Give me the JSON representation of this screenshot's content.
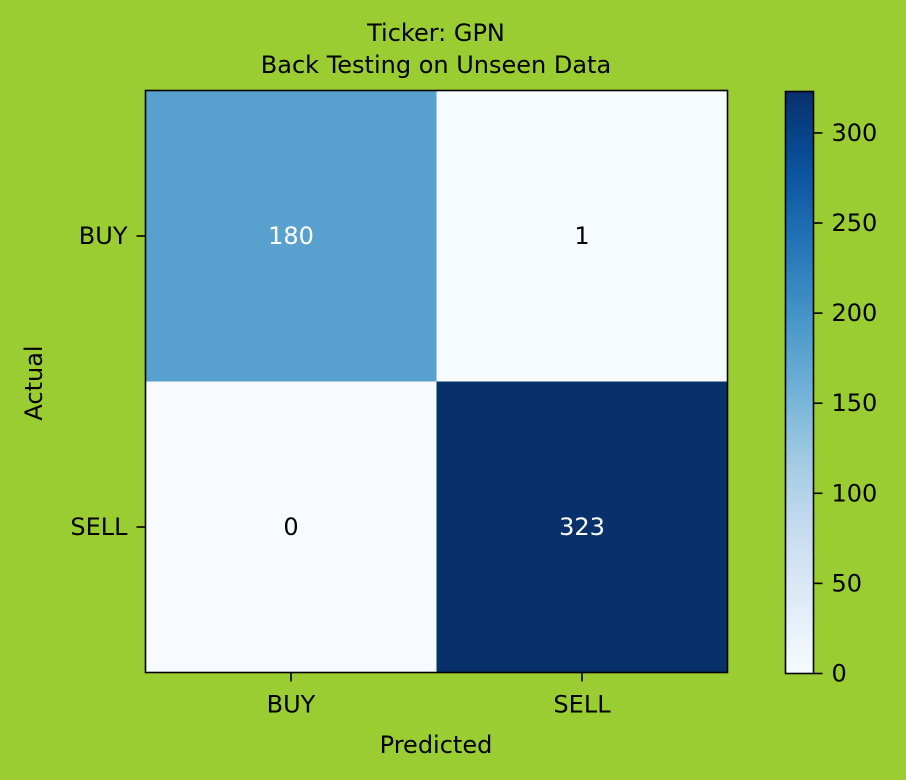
{
  "background_color": "#9acd32",
  "chart_data": {
    "type": "heatmap",
    "title": "Ticker: GPN",
    "subtitle": "Back Testing on Unseen Data",
    "xlabel": "Predicted",
    "ylabel": "Actual",
    "x_categories": [
      "BUY",
      "SELL"
    ],
    "y_categories": [
      "BUY",
      "SELL"
    ],
    "values": [
      [
        180,
        1
      ],
      [
        0,
        323
      ]
    ],
    "colormap": "Blues",
    "color_range": [
      0,
      323
    ],
    "colorbar_ticks": [
      0,
      50,
      100,
      150,
      200,
      250,
      300
    ],
    "colorbar_tick_labels": [
      "0",
      "50",
      "100",
      "150",
      "200",
      "250",
      "300"
    ],
    "grid": false
  }
}
